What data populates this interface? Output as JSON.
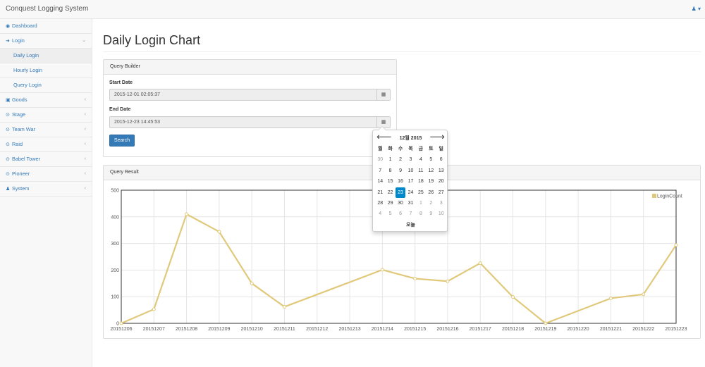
{
  "app": {
    "brand": "Conquest Logging System",
    "user_icon": "user-icon"
  },
  "sidebar": {
    "items": [
      {
        "label": "Dashboard",
        "icon": "dashboard-icon",
        "glyph": "◉"
      },
      {
        "label": "Login",
        "icon": "sign-in-icon",
        "glyph": "➜",
        "expanded": true,
        "children": [
          "Daily Login",
          "Hourly Login",
          "Query Login"
        ]
      },
      {
        "label": "Goods",
        "icon": "money-icon",
        "glyph": "▣"
      },
      {
        "label": "Stage",
        "icon": "circle-icon",
        "glyph": "⊙"
      },
      {
        "label": "Team War",
        "icon": "circle-icon",
        "glyph": "⊙"
      },
      {
        "label": "Raid",
        "icon": "circle-icon",
        "glyph": "⊙"
      },
      {
        "label": "Babel Tower",
        "icon": "circle-icon",
        "glyph": "⊙"
      },
      {
        "label": "Pioneer",
        "icon": "circle-icon",
        "glyph": "⊙"
      },
      {
        "label": "System",
        "icon": "user-icon",
        "glyph": "♟"
      }
    ]
  },
  "page": {
    "title": "Daily Login Chart"
  },
  "query_builder": {
    "heading": "Query Builder",
    "start_label": "Start Date",
    "start_value": "2015-12-01 02:05:37",
    "end_label": "End Date",
    "end_value": "2015-12-23 14:45:53",
    "search_label": "Search"
  },
  "query_result": {
    "heading": "Query Result"
  },
  "datepicker": {
    "month": "12월 2015",
    "prev": "🡐",
    "next": "🡒",
    "weekdays": [
      "월",
      "화",
      "수",
      "목",
      "금",
      "토",
      "일"
    ],
    "weeks": [
      [
        "30",
        "1",
        "2",
        "3",
        "4",
        "5",
        "6"
      ],
      [
        "7",
        "8",
        "9",
        "10",
        "11",
        "12",
        "13"
      ],
      [
        "14",
        "15",
        "16",
        "17",
        "18",
        "19",
        "20"
      ],
      [
        "21",
        "22",
        "23",
        "24",
        "25",
        "26",
        "27"
      ],
      [
        "28",
        "29",
        "30",
        "31",
        "1",
        "2",
        "3"
      ],
      [
        "4",
        "5",
        "6",
        "7",
        "8",
        "9",
        "10"
      ]
    ],
    "selected_day": "23",
    "today_label": "오늘"
  },
  "chart_data": {
    "type": "line",
    "categories": [
      "20151206",
      "20151207",
      "20151208",
      "20151209",
      "20151210",
      "20151211",
      "20151212",
      "20151213",
      "20151214",
      "20151215",
      "20151216",
      "20151217",
      "20151218",
      "20151219",
      "20151220",
      "20151221",
      "20151222",
      "20151223"
    ],
    "series": [
      {
        "name": "LoginCount",
        "color": "#e0c97a",
        "values": [
          0,
          53,
          410,
          344,
          150,
          62,
          null,
          null,
          201,
          168,
          158,
          226,
          99,
          0,
          null,
          94,
          109,
          294
        ]
      }
    ],
    "ylim": [
      0,
      500
    ],
    "yticks": [
      0,
      100,
      200,
      300,
      400,
      500
    ],
    "legend": "top-right",
    "grid": true
  }
}
